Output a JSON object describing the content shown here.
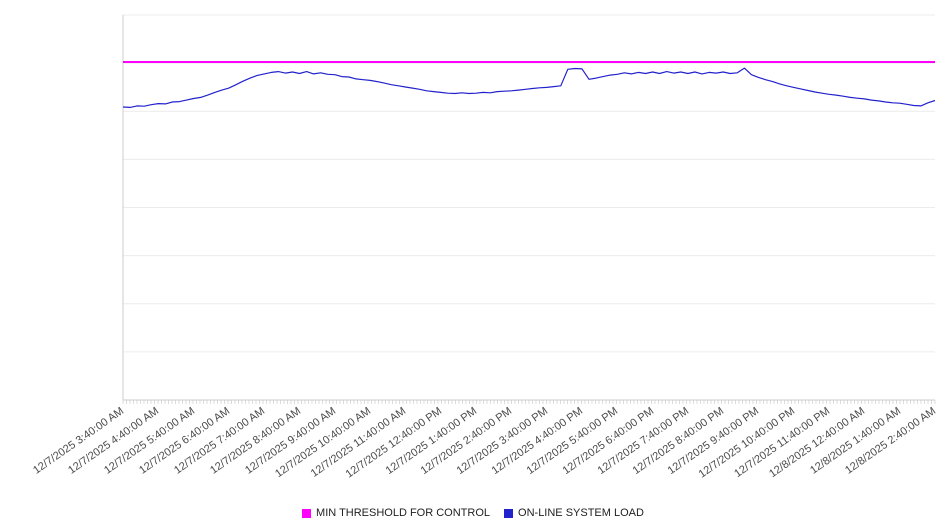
{
  "chart_data": {
    "type": "line",
    "title": "",
    "legend_position": "bottom-center",
    "grid": "horizontal",
    "ylim": [
      0,
      100
    ],
    "y_axis_labels_visible": false,
    "colors": {
      "grid": "#ececec",
      "axis": "#cccccc",
      "background": "#ffffff"
    },
    "x_labels": [
      "12/7/2025 3:40:00 AM",
      "12/7/2025 4:40:00 AM",
      "12/7/2025 5:40:00 AM",
      "12/7/2025 6:40:00 AM",
      "12/7/2025 7:40:00 AM",
      "12/7/2025 8:40:00 AM",
      "12/7/2025 9:40:00 AM",
      "12/7/2025 10:40:00 AM",
      "12/7/2025 11:40:00 AM",
      "12/7/2025 12:40:00 PM",
      "12/7/2025 1:40:00 PM",
      "12/7/2025 2:40:00 PM",
      "12/7/2025 3:40:00 PM",
      "12/7/2025 4:40:00 PM",
      "12/7/2025 5:40:00 PM",
      "12/7/2025 6:40:00 PM",
      "12/7/2025 7:40:00 PM",
      "12/7/2025 8:40:00 PM",
      "12/7/2025 9:40:00 PM",
      "12/7/2025 10:40:00 PM",
      "12/7/2025 11:40:00 PM",
      "12/8/2025 12:40:00 AM",
      "12/8/2025 1:40:00 AM",
      "12/8/2025 2:40:00 AM"
    ],
    "series": [
      {
        "name": "MIN THRESHOLD FOR CONTROL",
        "type": "constant-line",
        "color": "#ff00ff",
        "value": 87.8
      },
      {
        "name": "ON-LINE SYSTEM LOAD",
        "type": "line",
        "color": "#2222cc",
        "values": [
          76.1,
          76.0,
          76.4,
          76.3,
          76.7,
          77.0,
          76.9,
          77.4,
          77.5,
          77.9,
          78.3,
          78.6,
          79.2,
          79.9,
          80.5,
          81.0,
          81.9,
          82.8,
          83.6,
          84.3,
          84.7,
          85.1,
          85.3,
          84.9,
          85.2,
          84.8,
          85.3,
          84.7,
          85.0,
          84.6,
          84.5,
          84.0,
          83.9,
          83.4,
          83.2,
          83.0,
          82.7,
          82.3,
          81.9,
          81.6,
          81.3,
          81.0,
          80.7,
          80.3,
          80.1,
          79.9,
          79.7,
          79.6,
          79.8,
          79.6,
          79.7,
          79.9,
          79.8,
          80.1,
          80.2,
          80.3,
          80.5,
          80.7,
          80.9,
          81.1,
          81.2,
          81.4,
          81.6,
          85.9,
          86.1,
          86.0,
          83.3,
          83.6,
          84.0,
          84.4,
          84.6,
          85.0,
          84.7,
          85.1,
          84.8,
          85.2,
          84.8,
          85.3,
          84.9,
          85.2,
          84.8,
          85.2,
          84.7,
          85.1,
          84.9,
          85.2,
          84.8,
          85.0,
          86.2,
          84.5,
          83.8,
          83.2,
          82.7,
          82.1,
          81.6,
          81.2,
          80.8,
          80.4,
          80.0,
          79.7,
          79.4,
          79.2,
          78.9,
          78.6,
          78.4,
          78.2,
          77.9,
          77.7,
          77.4,
          77.2,
          77.1,
          76.8,
          76.5,
          76.4,
          77.2,
          77.8
        ]
      }
    ]
  }
}
